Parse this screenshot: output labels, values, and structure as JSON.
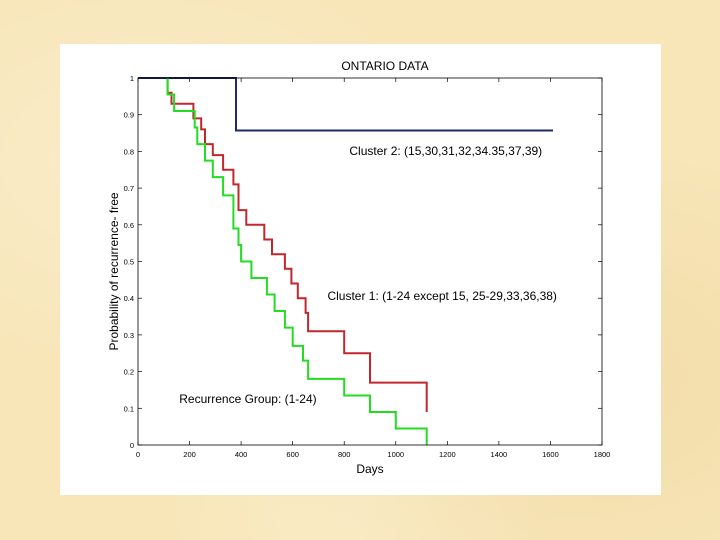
{
  "chart_data": {
    "type": "line",
    "step": true,
    "title": "ONTARIO DATA",
    "xlabel": "Days",
    "ylabel": "Probability of recurrence- free",
    "xlim": [
      0,
      1800
    ],
    "ylim": [
      0,
      1
    ],
    "xticks": [
      0,
      200,
      400,
      600,
      800,
      1000,
      1200,
      1400,
      1600,
      1800
    ],
    "yticks": [
      0,
      0.1,
      0.2,
      0.3,
      0.4,
      0.5,
      0.6,
      0.7,
      0.8,
      0.9,
      1
    ],
    "grid": false,
    "series": [
      {
        "name": "Cluster 2",
        "color": "#1f2a6b",
        "x": [
          0,
          380,
          380,
          1610
        ],
        "y": [
          1,
          1,
          0.857,
          0.857
        ]
      },
      {
        "name": "Cluster 1",
        "color": "#c1272d",
        "x": [
          115,
          115,
          130,
          130,
          215,
          215,
          245,
          245,
          260,
          260,
          290,
          290,
          330,
          330,
          370,
          370,
          390,
          390,
          420,
          420,
          490,
          490,
          520,
          520,
          570,
          570,
          595,
          595,
          620,
          620,
          650,
          650,
          660,
          660,
          800,
          800,
          900,
          900,
          1000,
          1000,
          1120,
          1120
        ],
        "y": [
          1,
          0.96,
          0.96,
          0.93,
          0.93,
          0.89,
          0.89,
          0.86,
          0.86,
          0.82,
          0.82,
          0.79,
          0.79,
          0.75,
          0.75,
          0.71,
          0.71,
          0.64,
          0.64,
          0.6,
          0.6,
          0.56,
          0.56,
          0.52,
          0.52,
          0.48,
          0.48,
          0.44,
          0.44,
          0.4,
          0.4,
          0.36,
          0.36,
          0.31,
          0.31,
          0.25,
          0.25,
          0.17,
          0.17,
          0.17,
          0.17,
          0.09
        ]
      },
      {
        "name": "Recurrence Group",
        "color": "#22dd22",
        "x": [
          115,
          115,
          140,
          140,
          220,
          220,
          230,
          230,
          260,
          260,
          290,
          290,
          330,
          330,
          370,
          370,
          390,
          390,
          400,
          400,
          440,
          440,
          500,
          500,
          530,
          530,
          570,
          570,
          600,
          600,
          640,
          640,
          660,
          660,
          800,
          800,
          900,
          900,
          1000,
          1000,
          1120,
          1120
        ],
        "y": [
          1,
          0.955,
          0.955,
          0.91,
          0.91,
          0.865,
          0.865,
          0.82,
          0.82,
          0.775,
          0.775,
          0.73,
          0.73,
          0.68,
          0.68,
          0.59,
          0.59,
          0.545,
          0.545,
          0.5,
          0.5,
          0.455,
          0.455,
          0.41,
          0.41,
          0.365,
          0.365,
          0.32,
          0.32,
          0.27,
          0.27,
          0.23,
          0.23,
          0.18,
          0.18,
          0.135,
          0.135,
          0.09,
          0.09,
          0.045,
          0.045,
          0
        ]
      }
    ],
    "annotations": [
      {
        "text": "Cluster 2: (15,30,31,32,34.35,37,39)",
        "x": 820,
        "y": 0.79
      },
      {
        "text": "Cluster 1: (1-24 except 15,  25-29,33,36,38)",
        "x": 735,
        "y": 0.395
      },
      {
        "text": "Recurrence Group: (1-24)",
        "x": 160,
        "y": 0.115
      }
    ]
  }
}
